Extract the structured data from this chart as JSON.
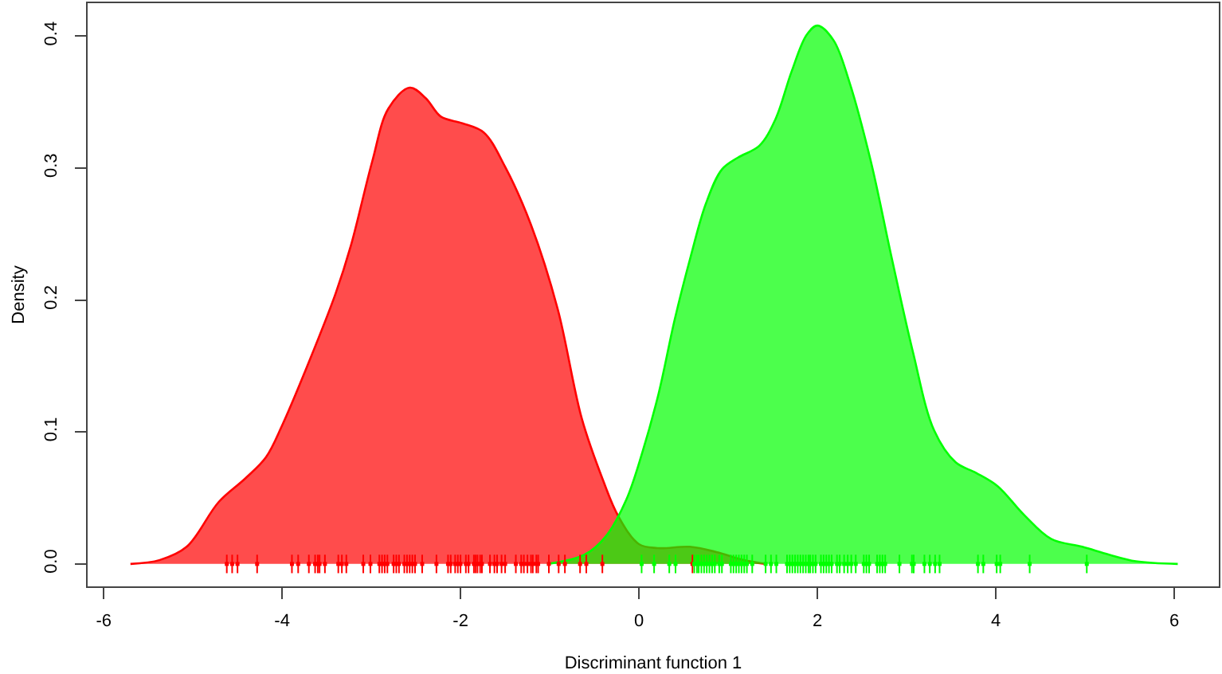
{
  "chart_data": {
    "type": "area",
    "xlabel": "Discriminant function 1",
    "ylabel": "Density",
    "xlim": [
      -6.18,
      6.5
    ],
    "ylim": [
      -0.017,
      0.425
    ],
    "xticks": [
      -6,
      -4,
      -2,
      0,
      2,
      4,
      6
    ],
    "yticks": [
      {
        "value": 0,
        "label": "0.0"
      },
      0.1,
      0.2,
      0.3,
      0.4
    ],
    "series": [
      {
        "color": "#ff0000",
        "x": [
          -5.7,
          -5.37,
          -5.07,
          -4.71,
          -4.41,
          -4.18,
          -4.0,
          -3.7,
          -3.4,
          -3.23,
          -2.99,
          -2.81,
          -2.57,
          -2.39,
          -2.22,
          -1.98,
          -1.74,
          -1.5,
          -1.21,
          -0.91,
          -0.64,
          -0.4,
          -0.23,
          0.0,
          0.21,
          0.57,
          0.87,
          1.17,
          1.41
        ],
        "values": [
          0,
          0.003,
          0.013,
          0.047,
          0.065,
          0.081,
          0.105,
          0.153,
          0.205,
          0.241,
          0.305,
          0.345,
          0.361,
          0.353,
          0.339,
          0.334,
          0.327,
          0.301,
          0.257,
          0.193,
          0.11,
          0.063,
          0.036,
          0.015,
          0.012,
          0.013,
          0.009,
          0.003,
          0
        ]
      },
      {
        "color": "#00ff00",
        "x": [
          -1.03,
          -0.61,
          -0.37,
          -0.14,
          0.04,
          0.22,
          0.4,
          0.58,
          0.75,
          0.93,
          1.11,
          1.35,
          1.53,
          1.71,
          1.88,
          2.0,
          2.18,
          2.36,
          2.6,
          2.83,
          3.07,
          3.31,
          3.55,
          3.78,
          4.02,
          4.32,
          4.62,
          4.97,
          5.27,
          5.57,
          6.04
        ],
        "values": [
          0,
          0.007,
          0.021,
          0.049,
          0.085,
          0.129,
          0.185,
          0.233,
          0.273,
          0.299,
          0.308,
          0.317,
          0.337,
          0.373,
          0.401,
          0.408,
          0.397,
          0.365,
          0.305,
          0.233,
          0.161,
          0.101,
          0.077,
          0.069,
          0.059,
          0.037,
          0.019,
          0.013,
          0.007,
          0.002,
          0
        ]
      },
      {
        "type": "scatter",
        "marker": "square",
        "color": "#ff0000",
        "x": [
          -4.62,
          -4.56,
          -4.5,
          -4.28,
          -3.89,
          -3.82,
          -3.7,
          -3.63,
          -3.6,
          -3.58,
          -3.52,
          -3.37,
          -3.33,
          -3.28,
          -3.09,
          -3.01,
          -2.91,
          -2.88,
          -2.85,
          -2.82,
          -2.75,
          -2.72,
          -2.69,
          -2.63,
          -2.6,
          -2.57,
          -2.54,
          -2.51,
          -2.43,
          -2.27,
          -2.14,
          -2.11,
          -2.06,
          -2.03,
          -2.0,
          -1.94,
          -1.91,
          -1.85,
          -1.83,
          -1.81,
          -1.78,
          -1.76,
          -1.67,
          -1.62,
          -1.59,
          -1.54,
          -1.5,
          -1.38,
          -1.32,
          -1.29,
          -1.25,
          -1.21,
          -1.19,
          -1.15,
          -1.13,
          -1.01,
          -0.9,
          -0.83,
          -0.66,
          -0.59,
          -0.41,
          0.6
        ],
        "values": [
          0,
          0,
          0,
          0,
          0,
          0,
          0,
          0,
          0,
          0,
          0,
          0,
          0,
          0,
          0,
          0,
          0,
          0,
          0,
          0,
          0,
          0,
          0,
          0,
          0,
          0,
          0,
          0,
          0,
          0,
          0,
          0,
          0,
          0,
          0,
          0,
          0,
          0,
          0,
          0,
          0,
          0,
          0,
          0,
          0,
          0,
          0,
          0,
          0,
          0,
          0,
          0,
          0,
          0,
          0,
          0,
          0,
          0,
          0,
          0,
          0,
          0
        ],
        "errors": [
          0.007,
          0.007,
          0.007,
          0.007,
          0.007,
          0.007,
          0.007,
          0.007,
          0.007,
          0.007,
          0.007,
          0.007,
          0.007,
          0.007,
          0.007,
          0.007,
          0.007,
          0.007,
          0.007,
          0.007,
          0.007,
          0.007,
          0.007,
          0.007,
          0.007,
          0.007,
          0.007,
          0.007,
          0.007,
          0.007,
          0.007,
          0.007,
          0.007,
          0.007,
          0.007,
          0.007,
          0.007,
          0.007,
          0.007,
          0.007,
          0.007,
          0.007,
          0.007,
          0.007,
          0.007,
          0.007,
          0.007,
          0.007,
          0.007,
          0.007,
          0.007,
          0.007,
          0.007,
          0.007,
          0.007,
          0.007,
          0.007,
          0.007,
          0.007,
          0.007,
          0.007,
          0.007
        ]
      },
      {
        "type": "scatter",
        "marker": "square",
        "color": "#00ff00",
        "x": [
          0.03,
          0.17,
          0.34,
          0.41,
          0.62,
          0.65,
          0.67,
          0.7,
          0.73,
          0.76,
          0.79,
          0.82,
          0.85,
          0.9,
          0.93,
          1.03,
          1.06,
          1.09,
          1.12,
          1.15,
          1.18,
          1.21,
          1.27,
          1.42,
          1.48,
          1.54,
          1.66,
          1.69,
          1.72,
          1.75,
          1.78,
          1.81,
          1.84,
          1.87,
          1.9,
          1.92,
          1.95,
          1.98,
          2.04,
          2.07,
          2.1,
          2.13,
          2.16,
          2.22,
          2.25,
          2.3,
          2.34,
          2.38,
          2.43,
          2.52,
          2.55,
          2.58,
          2.67,
          2.7,
          2.73,
          2.76,
          2.92,
          3.06,
          3.08,
          3.2,
          3.26,
          3.32,
          3.37,
          3.8,
          3.86,
          4.01,
          4.05,
          4.38,
          5.02
        ],
        "values": [
          0,
          0,
          0,
          0,
          0,
          0,
          0,
          0,
          0,
          0,
          0,
          0,
          0,
          0,
          0,
          0,
          0,
          0,
          0,
          0,
          0,
          0,
          0,
          0,
          0,
          0,
          0,
          0,
          0,
          0,
          0,
          0,
          0,
          0,
          0,
          0,
          0,
          0,
          0,
          0,
          0,
          0,
          0,
          0,
          0,
          0,
          0,
          0,
          0,
          0,
          0,
          0,
          0,
          0,
          0,
          0,
          0,
          0,
          0,
          0,
          0,
          0,
          0,
          0,
          0,
          0,
          0,
          0,
          0
        ],
        "errors": [
          0.007,
          0.007,
          0.007,
          0.007,
          0.007,
          0.007,
          0.007,
          0.007,
          0.007,
          0.007,
          0.007,
          0.007,
          0.007,
          0.007,
          0.007,
          0.007,
          0.007,
          0.007,
          0.007,
          0.007,
          0.007,
          0.007,
          0.007,
          0.007,
          0.007,
          0.007,
          0.007,
          0.007,
          0.007,
          0.007,
          0.007,
          0.007,
          0.007,
          0.007,
          0.007,
          0.007,
          0.007,
          0.007,
          0.007,
          0.007,
          0.007,
          0.007,
          0.007,
          0.007,
          0.007,
          0.007,
          0.007,
          0.007,
          0.007,
          0.007,
          0.007,
          0.007,
          0.007,
          0.007,
          0.007,
          0.007,
          0.007,
          0.007,
          0.007,
          0.007,
          0.007,
          0.007,
          0.007,
          0.007,
          0.007,
          0.007,
          0.007,
          0.007,
          0.007
        ]
      }
    ]
  }
}
